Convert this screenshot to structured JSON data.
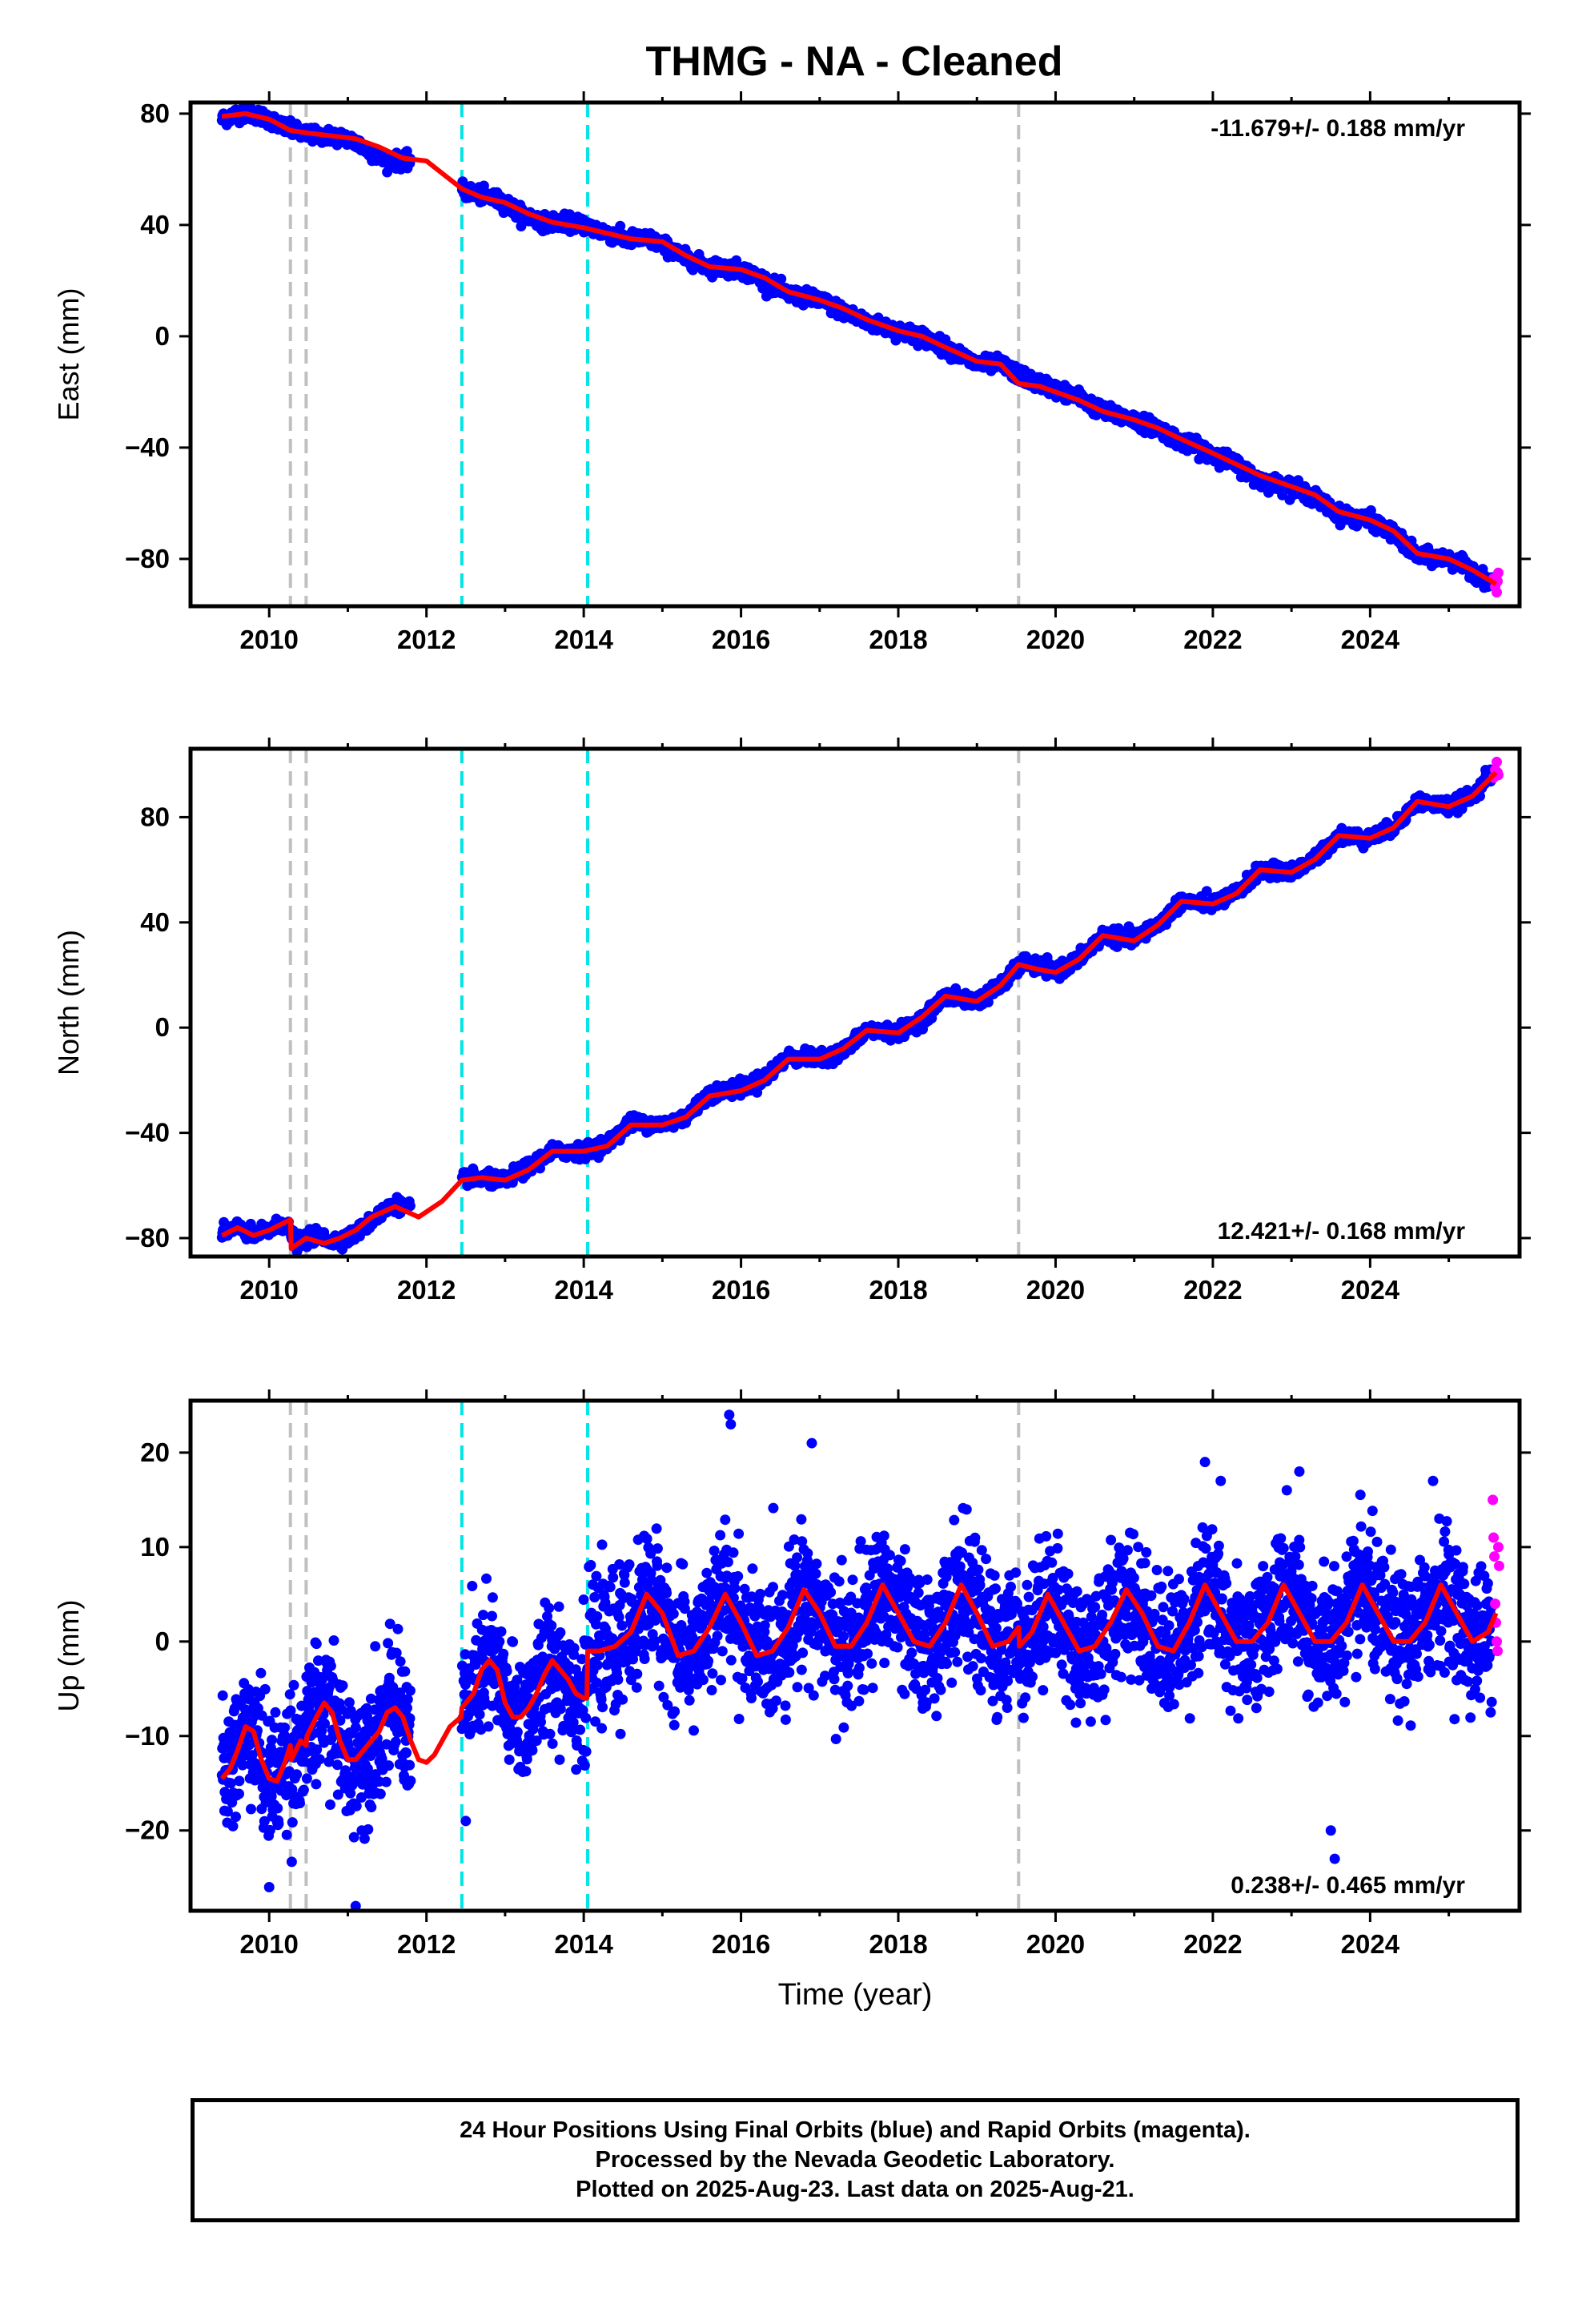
{
  "title": "THMG  - NA - Cleaned",
  "footer": {
    "line1": "24 Hour Positions Using Final Orbits (blue) and Rapid Orbits (magenta).",
    "line2": "Processed by the Nevada Geodetic Laboratory.",
    "line3": "Plotted on 2025-Aug-23. Last data on 2025-Aug-21."
  },
  "colors": {
    "final_orbits": "#0000ff",
    "rapid_orbits": "#ff00ff",
    "model_fit": "#ff0000",
    "equipment_change_lines": "#c0c0c0",
    "earthquake_lines": "#00e5e5"
  },
  "chart_data": [
    {
      "type": "scatter",
      "component": "East",
      "ylabel": "East (mm)",
      "xlabel": "",
      "xlim": [
        2009.0,
        2025.9
      ],
      "ylim": [
        -97,
        84
      ],
      "xticks": [
        2010,
        2012,
        2014,
        2016,
        2018,
        2020,
        2022,
        2024
      ],
      "yticks": [
        -80,
        -40,
        0,
        40,
        80
      ],
      "rate_label": "-11.679+/- 0.188 mm/yr",
      "rate_position": "top-right",
      "vlines_gray": [
        2010.27,
        2010.47,
        2019.53
      ],
      "vlines_cyan": [
        2012.45,
        2014.05
      ],
      "data_gap": [
        2011.8,
        2012.45
      ],
      "series": [
        {
          "name": "Final Orbits",
          "color": "#0000ff",
          "x": [
            2009.4,
            2009.6,
            2009.8,
            2010.0,
            2010.2,
            2010.4,
            2010.6,
            2010.8,
            2011.0,
            2011.2,
            2011.4,
            2011.6,
            2011.8,
            2012.5,
            2012.8,
            2013.0,
            2013.2,
            2013.5,
            2013.8,
            2014.0,
            2014.2,
            2014.5,
            2014.8,
            2015.0,
            2015.3,
            2015.6,
            2016.0,
            2016.3,
            2016.6,
            2017.0,
            2017.3,
            2017.6,
            2018.0,
            2018.3,
            2018.6,
            2019.0,
            2019.3,
            2019.6,
            2020.0,
            2020.3,
            2020.6,
            2021.0,
            2021.3,
            2021.6,
            2022.0,
            2022.3,
            2022.6,
            2023.0,
            2023.3,
            2023.6,
            2024.0,
            2024.3,
            2024.6,
            2025.0,
            2025.3,
            2025.5
          ],
          "y": [
            78,
            80,
            80,
            78,
            75,
            73,
            72,
            72,
            71,
            68,
            64,
            63,
            63,
            52,
            50,
            48,
            44,
            41,
            41,
            40,
            38,
            35,
            35,
            33,
            28,
            25,
            24,
            20,
            15,
            13,
            9,
            5,
            2,
            0,
            -4,
            -10,
            -10,
            -15,
            -19,
            -22,
            -27,
            -30,
            -33,
            -38,
            -42,
            -46,
            -52,
            -54,
            -58,
            -64,
            -66,
            -71,
            -79,
            -80,
            -84,
            -88
          ]
        },
        {
          "name": "Rapid Orbits",
          "color": "#ff00ff",
          "x": [
            2025.57,
            2025.59,
            2025.61,
            2025.62,
            2025.63
          ],
          "y": [
            -87,
            -90,
            -92,
            -88,
            -85
          ]
        },
        {
          "name": "Model",
          "color": "#ff0000",
          "x": [
            2009.4,
            2009.7,
            2010.0,
            2010.27,
            2010.5,
            2010.8,
            2011.1,
            2011.4,
            2011.7,
            2012.0,
            2012.45,
            2012.7,
            2013.0,
            2013.3,
            2013.6,
            2014.0,
            2014.3,
            2014.6,
            2015.0,
            2015.3,
            2015.6,
            2016.0,
            2016.3,
            2016.6,
            2017.0,
            2017.3,
            2017.6,
            2018.0,
            2018.3,
            2018.6,
            2019.0,
            2019.3,
            2019.53,
            2019.8,
            2020.0,
            2020.3,
            2020.6,
            2021.0,
            2021.3,
            2021.6,
            2022.0,
            2022.3,
            2022.6,
            2023.0,
            2023.3,
            2023.6,
            2024.0,
            2024.3,
            2024.6,
            2025.0,
            2025.3,
            2025.6
          ],
          "y": [
            79,
            80,
            78,
            74,
            73,
            72,
            71,
            68,
            64,
            63,
            53,
            50,
            48,
            44,
            41,
            39,
            37,
            35,
            34,
            29,
            25,
            24,
            21,
            16,
            13,
            10,
            6,
            2,
            0,
            -4,
            -9,
            -10,
            -17,
            -18,
            -20,
            -23,
            -27,
            -30,
            -33,
            -37,
            -42,
            -46,
            -50,
            -54,
            -57,
            -63,
            -66,
            -70,
            -78,
            -80,
            -84,
            -89
          ]
        }
      ]
    },
    {
      "type": "scatter",
      "component": "North",
      "ylabel": "North (mm)",
      "xlabel": "",
      "xlim": [
        2009.0,
        2025.9
      ],
      "ylim": [
        -87,
        106
      ],
      "xticks": [
        2010,
        2012,
        2014,
        2016,
        2018,
        2020,
        2022,
        2024
      ],
      "yticks": [
        -80,
        -40,
        0,
        40,
        80
      ],
      "rate_label": "12.421+/- 0.168 mm/yr",
      "rate_position": "bottom-right",
      "vlines_gray": [
        2010.27,
        2010.47,
        2019.53
      ],
      "vlines_cyan": [
        2012.45,
        2014.05
      ],
      "data_gap": [
        2011.8,
        2012.45
      ],
      "series": [
        {
          "name": "Final Orbits",
          "color": "#0000ff",
          "x": [
            2009.4,
            2009.6,
            2009.8,
            2010.0,
            2010.2,
            2010.35,
            2010.6,
            2010.8,
            2011.0,
            2011.2,
            2011.4,
            2011.6,
            2011.8,
            2012.5,
            2012.8,
            2013.0,
            2013.3,
            2013.6,
            2014.0,
            2014.3,
            2014.6,
            2015.0,
            2015.3,
            2015.6,
            2016.0,
            2016.3,
            2016.6,
            2017.0,
            2017.3,
            2017.6,
            2018.0,
            2018.3,
            2018.6,
            2019.0,
            2019.3,
            2019.6,
            2020.0,
            2020.3,
            2020.6,
            2021.0,
            2021.3,
            2021.6,
            2022.0,
            2022.3,
            2022.6,
            2023.0,
            2023.3,
            2023.6,
            2024.0,
            2024.3,
            2024.6,
            2025.0,
            2025.3,
            2025.5
          ],
          "y": [
            -78,
            -76,
            -79,
            -77,
            -74,
            -82,
            -79,
            -81,
            -80,
            -76,
            -71,
            -67,
            -69,
            -57,
            -58,
            -58,
            -53,
            -47,
            -47,
            -44,
            -36,
            -37,
            -34,
            -25,
            -23,
            -19,
            -11,
            -12,
            -9,
            -1,
            -2,
            3,
            12,
            10,
            16,
            25,
            21,
            26,
            35,
            34,
            39,
            48,
            47,
            51,
            60,
            59,
            64,
            73,
            72,
            76,
            86,
            84,
            88,
            96
          ]
        },
        {
          "name": "Rapid Orbits",
          "color": "#ff00ff",
          "x": [
            2025.57,
            2025.59,
            2025.61,
            2025.62,
            2025.63
          ],
          "y": [
            95,
            98,
            101,
            97,
            96
          ]
        },
        {
          "name": "Model",
          "color": "#ff0000",
          "x": [
            2009.4,
            2009.6,
            2009.8,
            2010.0,
            2010.27,
            2010.28,
            2010.47,
            2010.7,
            2010.9,
            2011.1,
            2011.3,
            2011.6,
            2011.9,
            2012.2,
            2012.45,
            2012.7,
            2013.0,
            2013.3,
            2013.6,
            2014.0,
            2014.3,
            2014.6,
            2015.0,
            2015.3,
            2015.6,
            2016.0,
            2016.3,
            2016.6,
            2017.0,
            2017.3,
            2017.6,
            2018.0,
            2018.3,
            2018.6,
            2019.0,
            2019.3,
            2019.53,
            2019.8,
            2020.0,
            2020.3,
            2020.6,
            2021.0,
            2021.3,
            2021.6,
            2022.0,
            2022.3,
            2022.6,
            2023.0,
            2023.3,
            2023.6,
            2024.0,
            2024.3,
            2024.6,
            2025.0,
            2025.3,
            2025.6
          ],
          "y": [
            -79,
            -76,
            -79,
            -77,
            -73,
            -84,
            -80,
            -82,
            -80,
            -77,
            -72,
            -68,
            -72,
            -66,
            -58,
            -57,
            -58,
            -54,
            -47,
            -47,
            -45,
            -37,
            -37,
            -34,
            -26,
            -24,
            -20,
            -12,
            -12,
            -8,
            -1,
            -2,
            4,
            12,
            10,
            16,
            24,
            22,
            21,
            26,
            35,
            33,
            39,
            48,
            47,
            51,
            60,
            59,
            64,
            73,
            72,
            76,
            86,
            84,
            88,
            97
          ]
        }
      ]
    },
    {
      "type": "scatter",
      "component": "Up",
      "ylabel": "Up (mm)",
      "xlabel": "Time (year)",
      "xlim": [
        2009.0,
        2025.9
      ],
      "ylim": [
        -28.5,
        25.5
      ],
      "xticks": [
        2010,
        2012,
        2014,
        2016,
        2018,
        2020,
        2022,
        2024
      ],
      "yticks": [
        -20,
        -10,
        0,
        10,
        20
      ],
      "rate_label": "0.238+/- 0.465 mm/yr",
      "rate_position": "bottom-right",
      "vlines_gray": [
        2010.27,
        2010.47,
        2019.53
      ],
      "vlines_cyan": [
        2012.45,
        2014.05
      ],
      "data_gap": [
        2011.8,
        2012.45
      ],
      "noise_sigma_mm": 3.5,
      "outliers": [
        {
          "x": 2015.85,
          "y": 24
        },
        {
          "x": 2015.87,
          "y": 23
        },
        {
          "x": 2016.9,
          "y": 21
        },
        {
          "x": 2023.55,
          "y": -23
        },
        {
          "x": 2023.5,
          "y": -20
        },
        {
          "x": 2011.1,
          "y": -28
        },
        {
          "x": 2010.0,
          "y": -26
        },
        {
          "x": 2021.9,
          "y": 19
        },
        {
          "x": 2022.1,
          "y": 17
        },
        {
          "x": 2023.1,
          "y": 18
        },
        {
          "x": 2024.8,
          "y": 17
        },
        {
          "x": 2012.5,
          "y": -19
        }
      ],
      "series": [
        {
          "name": "Rapid Orbits",
          "color": "#ff00ff",
          "x": [
            2025.56,
            2025.57,
            2025.58,
            2025.59,
            2025.6,
            2025.61,
            2025.62,
            2025.63,
            2025.64
          ],
          "y": [
            15,
            11,
            9,
            4,
            2,
            0,
            -1,
            10,
            8
          ]
        },
        {
          "name": "Model",
          "color": "#ff0000",
          "x": [
            2009.4,
            2009.5,
            2009.6,
            2009.7,
            2009.8,
            2009.9,
            2010.0,
            2010.1,
            2010.2,
            2010.27,
            2010.28,
            2010.4,
            2010.47,
            2010.48,
            2010.6,
            2010.7,
            2010.8,
            2010.9,
            2011.0,
            2011.1,
            2011.2,
            2011.3,
            2011.4,
            2011.5,
            2011.6,
            2011.7,
            2011.8,
            2011.9,
            2012.0,
            2012.1,
            2012.2,
            2012.3,
            2012.44,
            2012.45,
            2012.6,
            2012.7,
            2012.8,
            2012.9,
            2013.0,
            2013.1,
            2013.2,
            2013.3,
            2013.4,
            2013.5,
            2013.6,
            2013.7,
            2013.8,
            2013.9,
            2014.0,
            2014.04,
            2014.05,
            2014.2,
            2014.4,
            2014.6,
            2014.8,
            2015.0,
            2015.2,
            2015.4,
            2015.6,
            2015.8,
            2016.0,
            2016.2,
            2016.4,
            2016.6,
            2016.8,
            2017.0,
            2017.2,
            2017.4,
            2017.6,
            2017.8,
            2018.0,
            2018.2,
            2018.4,
            2018.6,
            2018.8,
            2019.0,
            2019.2,
            2019.4,
            2019.53,
            2019.54,
            2019.7,
            2019.9,
            2020.1,
            2020.3,
            2020.5,
            2020.7,
            2020.9,
            2021.1,
            2021.3,
            2021.5,
            2021.7,
            2021.9,
            2022.1,
            2022.3,
            2022.5,
            2022.7,
            2022.9,
            2023.1,
            2023.3,
            2023.5,
            2023.7,
            2023.9,
            2024.1,
            2024.3,
            2024.5,
            2024.7,
            2024.9,
            2025.1,
            2025.3,
            2025.5,
            2025.6
          ],
          "y": [
            -14.5,
            -13.5,
            -11.5,
            -9,
            -9.5,
            -12.5,
            -14.5,
            -14.8,
            -12.8,
            -11,
            -12.5,
            -10.5,
            -11,
            -10,
            -8,
            -6.5,
            -7.5,
            -10.5,
            -12.5,
            -12.5,
            -11.5,
            -10.5,
            -9.5,
            -7.5,
            -7,
            -8,
            -10.5,
            -12.5,
            -12.8,
            -12,
            -10.5,
            -9,
            -8,
            -7,
            -5.5,
            -3,
            -2,
            -3,
            -6.5,
            -8,
            -8,
            -7,
            -5.5,
            -3.5,
            -2,
            -3,
            -4,
            -5.5,
            -6,
            -6,
            -1,
            -1,
            -0.5,
            1,
            5,
            3,
            -1.5,
            -1,
            1.5,
            5,
            2,
            -1.5,
            -1,
            1.5,
            5.5,
            3,
            -0.5,
            -0.5,
            2,
            6,
            3,
            0,
            -0.5,
            2,
            6,
            3,
            -0.5,
            0,
            1.5,
            -0.5,
            1,
            5,
            2,
            -1,
            -0.5,
            2,
            5.5,
            3,
            -0.5,
            -1,
            2,
            6,
            3,
            0,
            0,
            2,
            6,
            3,
            0,
            0,
            2,
            6,
            3,
            0,
            0,
            2,
            6,
            3,
            0,
            1,
            3
          ]
        }
      ]
    }
  ]
}
